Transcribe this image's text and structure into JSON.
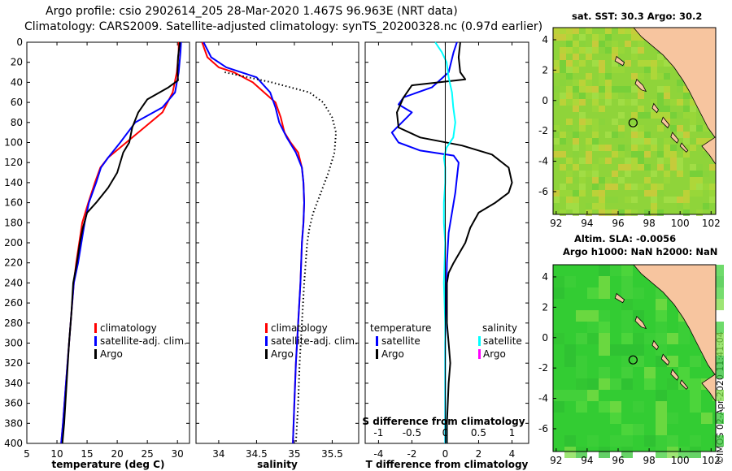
{
  "header": {
    "title_line1": "Argo profile: csio 2902614_205 28-Mar-2020 1.467S 96.963E (NRT data)",
    "title_line2": "Climatology: CARS2009. Satellite-adjusted climatology: synTS_20200328.nc (0.97d earlier)"
  },
  "colors": {
    "climatology": "#ff0000",
    "satellite": "#0000ff",
    "argo": "#000000",
    "salinity_satellite": "#00ffff",
    "salinity_argo": "#ff00ff",
    "land": "#f7c59f",
    "sea_warm": "#8fd43a",
    "sea_sla": "#33cc33"
  },
  "chart_data": [
    {
      "type": "line",
      "name": "temperature-profile",
      "xlabel": "temperature (deg C)",
      "ylabel": "",
      "xlim": [
        5,
        32
      ],
      "ylim": [
        400,
        0
      ],
      "xticks": [
        "5",
        "10",
        "15",
        "20",
        "25",
        "30"
      ],
      "xtick_values": [
        5,
        10,
        15,
        20,
        25,
        30
      ],
      "yticks": [
        0,
        20,
        40,
        60,
        80,
        100,
        120,
        140,
        160,
        180,
        200,
        220,
        240,
        260,
        280,
        300,
        320,
        340,
        360,
        380,
        400
      ],
      "legend": [
        "climatology",
        "satellite-adj. clim.",
        "Argo"
      ],
      "series": [
        {
          "name": "climatology",
          "color": "#ff0000",
          "points": [
            [
              30.2,
              0
            ],
            [
              30.2,
              10
            ],
            [
              29.9,
              30
            ],
            [
              29.2,
              50
            ],
            [
              27.5,
              70
            ],
            [
              24.5,
              85
            ],
            [
              21.5,
              100
            ],
            [
              18.5,
              115
            ],
            [
              17.2,
              125
            ],
            [
              16.3,
              140
            ],
            [
              15.2,
              160
            ],
            [
              14.2,
              180
            ],
            [
              13.2,
              220
            ],
            [
              12.8,
              240
            ],
            [
              12.4,
              270
            ],
            [
              12.0,
              300
            ],
            [
              11.5,
              340
            ],
            [
              11.0,
              380
            ],
            [
              10.7,
              400
            ]
          ]
        },
        {
          "name": "satellite-adj. clim.",
          "color": "#0000ff",
          "points": [
            [
              30.6,
              0
            ],
            [
              30.5,
              10
            ],
            [
              30.2,
              30
            ],
            [
              29.6,
              50
            ],
            [
              27.5,
              65
            ],
            [
              23.0,
              80
            ],
            [
              20.5,
              100
            ],
            [
              18.5,
              115
            ],
            [
              17.3,
              125
            ],
            [
              16.5,
              140
            ],
            [
              15.3,
              160
            ],
            [
              14.6,
              180
            ],
            [
              13.5,
              220
            ],
            [
              12.8,
              240
            ],
            [
              12.4,
              270
            ],
            [
              12.0,
              300
            ],
            [
              11.5,
              340
            ],
            [
              11.0,
              380
            ],
            [
              10.7,
              400
            ]
          ]
        },
        {
          "name": "Argo",
          "color": "#000000",
          "points": [
            [
              30.4,
              0
            ],
            [
              30.1,
              15
            ],
            [
              30.0,
              30
            ],
            [
              30.1,
              38
            ],
            [
              28.5,
              45
            ],
            [
              25.0,
              57
            ],
            [
              23.5,
              70
            ],
            [
              22.5,
              85
            ],
            [
              22.0,
              100
            ],
            [
              21.0,
              110
            ],
            [
              20.0,
              130
            ],
            [
              18.5,
              145
            ],
            [
              16.5,
              160
            ],
            [
              15.0,
              170
            ],
            [
              14.3,
              185
            ],
            [
              13.8,
              200
            ],
            [
              13.3,
              220
            ],
            [
              12.7,
              240
            ],
            [
              12.4,
              270
            ],
            [
              12.0,
              300
            ],
            [
              11.6,
              340
            ],
            [
              11.2,
              380
            ],
            [
              10.9,
              400
            ]
          ]
        }
      ]
    },
    {
      "type": "line",
      "name": "salinity-profile",
      "xlabel": "salinity",
      "ylabel": "",
      "xlim": [
        33.7,
        35.85
      ],
      "ylim": [
        400,
        0
      ],
      "xticks": [
        "34",
        "34.5",
        "35",
        "35.5"
      ],
      "xtick_values": [
        34,
        34.5,
        35,
        35.5
      ],
      "legend": [
        "climatology",
        "satellite-adj. clim.",
        "Argo"
      ],
      "series": [
        {
          "name": "climatology",
          "color": "#ff0000",
          "points": [
            [
              33.78,
              0
            ],
            [
              33.85,
              15
            ],
            [
              34.0,
              25
            ],
            [
              34.2,
              30
            ],
            [
              34.45,
              40
            ],
            [
              34.6,
              50
            ],
            [
              34.75,
              60
            ],
            [
              34.82,
              75
            ],
            [
              34.87,
              90
            ],
            [
              34.95,
              100
            ],
            [
              35.05,
              110
            ],
            [
              35.1,
              125
            ],
            [
              35.12,
              140
            ],
            [
              35.13,
              160
            ],
            [
              35.12,
              180
            ],
            [
              35.1,
              200
            ],
            [
              35.08,
              240
            ],
            [
              35.05,
              280
            ],
            [
              35.02,
              320
            ],
            [
              35.0,
              360
            ],
            [
              34.98,
              400
            ]
          ]
        },
        {
          "name": "satellite-adj. clim.",
          "color": "#0000ff",
          "points": [
            [
              33.8,
              0
            ],
            [
              33.9,
              15
            ],
            [
              34.1,
              25
            ],
            [
              34.5,
              35
            ],
            [
              34.68,
              50
            ],
            [
              34.75,
              65
            ],
            [
              34.8,
              80
            ],
            [
              34.9,
              95
            ],
            [
              35.02,
              110
            ],
            [
              35.1,
              125
            ],
            [
              35.12,
              140
            ],
            [
              35.13,
              160
            ],
            [
              35.12,
              180
            ],
            [
              35.1,
              200
            ],
            [
              35.08,
              240
            ],
            [
              35.05,
              280
            ],
            [
              35.02,
              320
            ],
            [
              35.0,
              360
            ],
            [
              34.98,
              400
            ]
          ]
        },
        {
          "name": "Argo",
          "color": "#000000",
          "dotted": true,
          "points": [
            [
              34.08,
              30
            ],
            [
              34.7,
              40
            ],
            [
              35.2,
              50
            ],
            [
              35.38,
              60
            ],
            [
              35.5,
              75
            ],
            [
              35.55,
              90
            ],
            [
              35.53,
              110
            ],
            [
              35.45,
              130
            ],
            [
              35.35,
              150
            ],
            [
              35.25,
              170
            ],
            [
              35.2,
              185
            ],
            [
              35.17,
              200
            ],
            [
              35.13,
              240
            ],
            [
              35.1,
              280
            ],
            [
              35.07,
              320
            ],
            [
              35.05,
              360
            ],
            [
              35.02,
              400
            ]
          ]
        }
      ]
    },
    {
      "type": "line",
      "name": "difference-profile",
      "xlabel": "T difference from climatology",
      "xlabel_top": "S difference from climatology",
      "ylabel": "",
      "xlim": [
        -4.8,
        5.0
      ],
      "ylim": [
        400,
        0
      ],
      "xticks": [
        "-4",
        "-2",
        "0",
        "2",
        "4"
      ],
      "xtick_values": [
        -4,
        -2,
        0,
        2,
        4
      ],
      "s_xticks": [
        "-1",
        "-0.5",
        "0",
        "0.5",
        "1"
      ],
      "s_xtick_values": [
        -1,
        -0.5,
        0,
        0.5,
        1
      ],
      "legend_temperature": {
        "title": "temperature",
        "entries": [
          "satellite",
          "Argo"
        ]
      },
      "legend_salinity": {
        "title": "salinity",
        "entries": [
          "satellite",
          "Argo"
        ]
      },
      "series": [
        {
          "name": "temperature satellite",
          "color": "#0000ff",
          "points": [
            [
              0.7,
              0
            ],
            [
              0.5,
              10
            ],
            [
              0.2,
              30
            ],
            [
              -0.8,
              45
            ],
            [
              -2.5,
              55
            ],
            [
              -2.8,
              62
            ],
            [
              -2.0,
              70
            ],
            [
              -2.6,
              80
            ],
            [
              -3.2,
              90
            ],
            [
              -2.8,
              100
            ],
            [
              -1.5,
              108
            ],
            [
              0.5,
              113
            ],
            [
              0.8,
              120
            ],
            [
              0.7,
              135
            ],
            [
              0.6,
              150
            ],
            [
              0.4,
              170
            ],
            [
              0.2,
              190
            ],
            [
              0.1,
              220
            ],
            [
              0.05,
              260
            ],
            [
              0.0,
              300
            ],
            [
              0.0,
              340
            ],
            [
              0.0,
              380
            ],
            [
              0.0,
              400
            ]
          ]
        },
        {
          "name": "temperature Argo",
          "color": "#000000",
          "points": [
            [
              0.9,
              0
            ],
            [
              0.8,
              15
            ],
            [
              0.9,
              30
            ],
            [
              1.2,
              37
            ],
            [
              -2.0,
              43
            ],
            [
              -2.5,
              55
            ],
            [
              -2.9,
              70
            ],
            [
              -2.8,
              85
            ],
            [
              -1.5,
              95
            ],
            [
              1.0,
              103
            ],
            [
              2.8,
              112
            ],
            [
              3.8,
              125
            ],
            [
              4.0,
              140
            ],
            [
              3.8,
              150
            ],
            [
              3.0,
              160
            ],
            [
              2.0,
              170
            ],
            [
              1.5,
              185
            ],
            [
              1.2,
              200
            ],
            [
              0.5,
              220
            ],
            [
              0.2,
              230
            ],
            [
              0.1,
              240
            ],
            [
              0.1,
              280
            ],
            [
              0.2,
              300
            ],
            [
              0.3,
              320
            ],
            [
              0.2,
              340
            ],
            [
              0.1,
              380
            ],
            [
              0.1,
              400
            ]
          ]
        },
        {
          "name": "salinity satellite",
          "color": "#00ffff",
          "s_units": true,
          "points": [
            [
              -0.15,
              0
            ],
            [
              -0.05,
              10
            ],
            [
              0.02,
              20
            ],
            [
              0.05,
              35
            ],
            [
              0.1,
              50
            ],
            [
              0.12,
              65
            ],
            [
              0.15,
              80
            ],
            [
              0.12,
              95
            ],
            [
              0.02,
              105
            ],
            [
              -0.02,
              115
            ],
            [
              0.0,
              125
            ],
            [
              0.0,
              140
            ],
            [
              -0.02,
              160
            ],
            [
              -0.02,
              180
            ],
            [
              0.0,
              200
            ],
            [
              -0.02,
              240
            ],
            [
              0.0,
              280
            ],
            [
              0.0,
              320
            ],
            [
              0.0,
              360
            ],
            [
              0.0,
              400
            ]
          ]
        },
        {
          "name": "salinity Argo",
          "color": "#ff00ff",
          "s_units": true,
          "hidden": true,
          "points": []
        }
      ]
    }
  ],
  "maps": {
    "sst": {
      "title": "sat. SST: 30.3 Argo: 30.2",
      "xticks": [
        "92",
        "94",
        "96",
        "98",
        "100",
        "102"
      ],
      "xtick_values": [
        92,
        94,
        96,
        98,
        100,
        102
      ],
      "yticks": [
        "4",
        "2",
        "0",
        "-2",
        "-4",
        "-6"
      ],
      "ytick_values": [
        4,
        2,
        0,
        -2,
        -4,
        -6
      ],
      "xlim": [
        91.8,
        102.3
      ],
      "ylim": [
        -7.5,
        4.8
      ],
      "float_lon": 96.963,
      "float_lat": -1.467
    },
    "sla": {
      "title_line1": "Altim. SLA: -0.0056",
      "title_line2": "Argo h1000: NaN h2000: NaN",
      "xticks": [
        "92",
        "94",
        "96",
        "98",
        "100",
        "102"
      ],
      "xtick_values": [
        92,
        94,
        96,
        98,
        100,
        102
      ],
      "yticks": [
        "4",
        "2",
        "0",
        "-2",
        "-4",
        "-6"
      ],
      "ytick_values": [
        4,
        2,
        0,
        -2,
        -4,
        -6
      ],
      "xlim": [
        91.8,
        102.3
      ],
      "ylim": [
        -7.5,
        4.8
      ],
      "float_lon": 96.963,
      "float_lat": -1.467
    }
  },
  "footer": {
    "stamp": "©IMOS 02-Apr-2020 11:41:04"
  }
}
